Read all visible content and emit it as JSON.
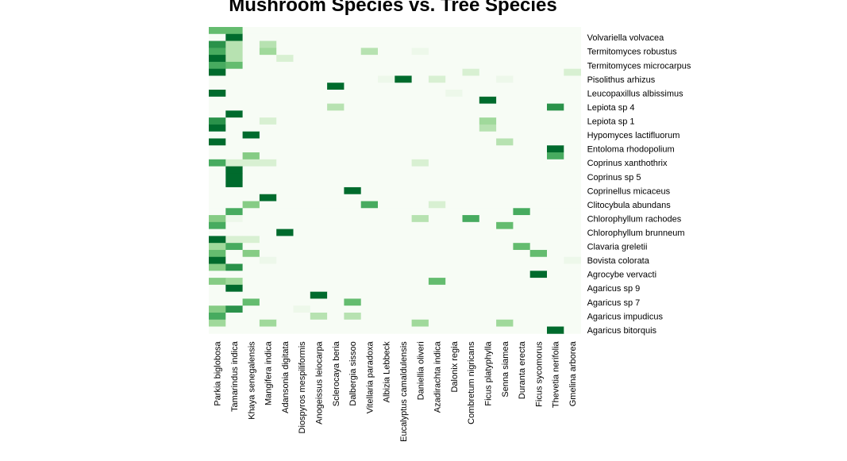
{
  "chart_data": {
    "type": "heatmap",
    "title": "Mushroom Species vs. Tree Species",
    "columns": [
      "Parkia biglobosa",
      "Tamarindus indica",
      "Khaya senegalensis",
      "Mangifera indica",
      "Adansonia digitata",
      "Diospyros mespiliformis",
      "Anogeissus leiocarpa",
      "Sclerocaya  beria",
      "Dalbergia sissoo",
      "Vitellaria paradoxa",
      "Albizia Lebbeck",
      "Eucalyptus camaldulensis",
      "Daniellia oliveri",
      "Azadirachta indica",
      "Dalonix regia",
      "Combretum nigricans",
      "Ficus platyphylla",
      "Senna siamea",
      "Duranta erecta",
      "Ficus sycomorus",
      "Thevetia nerifolia",
      "Gmelina arborea"
    ],
    "rows": [
      "",
      "Volvariella volvacea",
      "",
      "Termitomyces robustus",
      "",
      "Termitomyces microcarpus",
      "",
      "Pisolithus arhizus",
      "",
      "Leucopaxillus albissimus",
      "",
      "Lepiota sp  4",
      "",
      "Lepiota sp  1",
      "",
      "Hypomyces lactifluorum",
      "",
      "Entoloma rhodopolium",
      "",
      "Coprinus xanthothrix",
      "",
      "Coprinus sp  5",
      "",
      "Coprinellus micaceus",
      "",
      "Clitocybula abundans",
      "",
      "Chlorophyllum rachodes",
      "",
      "Chlorophyllum brunneum",
      "",
      "Clavaria greletii",
      "",
      "Bovista colorata",
      "",
      "Agrocybe vervacti",
      "",
      "Agaricus sp  9",
      "",
      "Agaricus sp  7",
      "",
      "Agaricus impudicus",
      "",
      "Agaricus bitorquis"
    ],
    "values": [
      [
        6,
        6,
        0,
        0,
        0,
        0,
        0,
        0,
        0,
        0,
        0,
        0,
        0,
        0,
        0,
        0,
        0,
        0,
        0,
        0,
        0,
        0
      ],
      [
        0,
        9,
        0,
        0,
        0,
        0,
        0,
        0,
        0,
        0,
        0,
        0,
        0,
        0,
        0,
        0,
        0,
        0,
        0,
        0,
        0,
        0
      ],
      [
        8,
        3,
        0,
        3,
        0,
        0,
        0,
        0,
        0,
        0,
        0,
        0,
        0,
        0,
        0,
        0,
        0,
        0,
        0,
        0,
        0,
        0
      ],
      [
        7,
        3,
        0,
        4,
        0,
        0,
        0,
        0,
        0,
        3,
        0,
        0,
        1,
        0,
        0,
        0,
        0,
        0,
        0,
        0,
        0,
        0
      ],
      [
        9,
        3,
        0,
        0,
        2,
        0,
        0,
        0,
        0,
        0,
        0,
        0,
        0,
        0,
        0,
        0,
        0,
        0,
        0,
        0,
        0,
        0
      ],
      [
        7,
        6,
        0,
        0,
        0,
        0,
        0,
        0,
        0,
        0,
        0,
        0,
        0,
        0,
        0,
        0,
        0,
        0,
        0,
        0,
        0,
        0
      ],
      [
        9,
        0,
        0,
        0,
        0,
        0,
        0,
        0,
        0,
        0,
        0,
        0,
        0,
        0,
        0,
        2,
        0,
        0,
        0,
        0,
        0,
        2
      ],
      [
        0,
        0,
        0,
        0,
        0,
        0,
        0,
        0,
        0,
        0,
        1,
        9,
        0,
        2,
        0,
        0,
        0,
        1,
        0,
        0,
        0,
        0
      ],
      [
        0,
        0,
        0,
        0,
        0,
        0,
        0,
        9,
        0,
        0,
        0,
        0,
        0,
        0,
        0,
        0,
        0,
        0,
        0,
        0,
        0,
        0
      ],
      [
        9,
        0,
        0,
        0,
        0,
        0,
        0,
        0,
        0,
        0,
        0,
        0,
        0,
        0,
        1,
        0,
        0,
        0,
        0,
        0,
        0,
        0
      ],
      [
        0,
        0,
        0,
        0,
        0,
        0,
        0,
        0,
        0,
        0,
        0,
        0,
        0,
        0,
        0,
        0,
        9,
        0,
        0,
        0,
        0,
        0
      ],
      [
        0,
        0,
        0,
        0,
        0,
        0,
        0,
        3,
        0,
        0,
        0,
        0,
        0,
        0,
        0,
        0,
        0,
        0,
        0,
        0,
        8,
        0
      ],
      [
        0,
        9,
        0,
        0,
        0,
        0,
        0,
        0,
        0,
        0,
        0,
        0,
        0,
        0,
        0,
        0,
        0,
        0,
        0,
        0,
        0,
        0
      ],
      [
        8,
        0,
        0,
        2,
        0,
        0,
        0,
        0,
        0,
        0,
        0,
        0,
        0,
        0,
        0,
        0,
        4,
        0,
        0,
        0,
        0,
        0
      ],
      [
        9,
        0,
        0,
        0,
        0,
        0,
        0,
        0,
        0,
        0,
        0,
        0,
        0,
        0,
        0,
        0,
        3,
        0,
        0,
        0,
        0,
        0
      ],
      [
        0,
        0,
        9,
        0,
        0,
        0,
        0,
        0,
        0,
        0,
        0,
        0,
        0,
        0,
        0,
        0,
        0,
        0,
        0,
        0,
        0,
        0
      ],
      [
        9,
        0,
        0,
        0,
        0,
        0,
        0,
        0,
        0,
        0,
        0,
        0,
        0,
        0,
        0,
        0,
        0,
        3,
        0,
        0,
        0,
        0
      ],
      [
        0,
        0,
        0,
        0,
        0,
        0,
        0,
        0,
        0,
        0,
        0,
        0,
        0,
        0,
        0,
        0,
        0,
        0,
        0,
        0,
        9,
        0
      ],
      [
        0,
        0,
        5,
        0,
        0,
        0,
        0,
        0,
        0,
        0,
        0,
        0,
        0,
        0,
        0,
        0,
        0,
        0,
        0,
        0,
        7,
        0
      ],
      [
        7,
        2,
        2,
        2,
        0,
        0,
        0,
        0,
        0,
        0,
        0,
        0,
        2,
        0,
        0,
        0,
        0,
        0,
        0,
        0,
        0,
        0
      ],
      [
        0,
        9,
        0,
        0,
        0,
        0,
        0,
        0,
        0,
        0,
        0,
        0,
        0,
        0,
        0,
        0,
        0,
        0,
        0,
        0,
        0,
        0
      ],
      [
        0,
        9,
        0,
        0,
        0,
        0,
        0,
        0,
        0,
        0,
        0,
        0,
        0,
        0,
        0,
        0,
        0,
        0,
        0,
        0,
        0,
        0
      ],
      [
        0,
        9,
        0,
        0,
        0,
        0,
        0,
        0,
        0,
        0,
        0,
        0,
        0,
        0,
        0,
        0,
        0,
        0,
        0,
        0,
        0,
        0
      ],
      [
        0,
        0,
        0,
        0,
        0,
        0,
        0,
        0,
        9,
        0,
        0,
        0,
        0,
        0,
        0,
        0,
        0,
        0,
        0,
        0,
        0,
        0
      ],
      [
        0,
        0,
        0,
        9,
        0,
        0,
        0,
        0,
        0,
        0,
        0,
        0,
        0,
        0,
        0,
        0,
        0,
        0,
        0,
        0,
        0,
        0
      ],
      [
        0,
        0,
        5,
        0,
        0,
        0,
        0,
        0,
        0,
        7,
        0,
        0,
        0,
        2,
        0,
        0,
        0,
        0,
        0,
        0,
        0,
        0
      ],
      [
        0,
        7,
        0,
        0,
        0,
        0,
        0,
        0,
        0,
        0,
        0,
        0,
        0,
        0,
        0,
        0,
        0,
        0,
        7,
        0,
        0,
        0
      ],
      [
        5,
        1,
        0,
        0,
        0,
        0,
        0,
        0,
        0,
        0,
        0,
        0,
        3,
        0,
        0,
        7,
        0,
        0,
        0,
        0,
        0,
        0
      ],
      [
        7,
        0,
        0,
        0,
        0,
        0,
        0,
        0,
        0,
        0,
        0,
        0,
        0,
        0,
        0,
        0,
        0,
        6,
        0,
        0,
        0,
        0
      ],
      [
        0,
        0,
        0,
        0,
        9,
        0,
        0,
        0,
        0,
        0,
        0,
        0,
        0,
        0,
        0,
        0,
        0,
        0,
        0,
        0,
        0,
        0
      ],
      [
        9,
        2,
        2,
        0,
        0,
        0,
        0,
        0,
        0,
        0,
        0,
        0,
        0,
        0,
        0,
        0,
        0,
        0,
        0,
        0,
        0,
        0
      ],
      [
        4,
        7,
        0,
        0,
        0,
        0,
        0,
        0,
        0,
        0,
        0,
        0,
        0,
        0,
        0,
        0,
        0,
        0,
        6,
        0,
        0,
        0
      ],
      [
        6,
        0,
        5,
        0,
        0,
        0,
        0,
        0,
        0,
        0,
        0,
        0,
        0,
        0,
        0,
        0,
        0,
        0,
        0,
        6,
        0,
        0
      ],
      [
        9,
        0,
        0,
        1,
        0,
        0,
        0,
        0,
        0,
        0,
        0,
        0,
        0,
        0,
        0,
        0,
        0,
        0,
        0,
        0,
        0,
        1
      ],
      [
        5,
        8,
        0,
        0,
        0,
        0,
        0,
        0,
        0,
        0,
        0,
        0,
        0,
        0,
        0,
        0,
        0,
        0,
        0,
        0,
        0,
        0
      ],
      [
        0,
        0,
        0,
        0,
        0,
        0,
        0,
        0,
        0,
        0,
        0,
        0,
        0,
        0,
        0,
        0,
        0,
        0,
        0,
        9,
        0,
        0
      ],
      [
        5,
        4,
        0,
        0,
        0,
        0,
        0,
        0,
        0,
        0,
        0,
        0,
        0,
        6,
        0,
        0,
        0,
        0,
        0,
        0,
        0,
        0
      ],
      [
        0,
        9,
        0,
        0,
        0,
        0,
        0,
        0,
        0,
        0,
        0,
        0,
        0,
        0,
        0,
        0,
        0,
        0,
        0,
        0,
        0,
        0
      ],
      [
        0,
        0,
        0,
        0,
        0,
        0,
        9,
        0,
        0,
        0,
        0,
        0,
        0,
        0,
        0,
        0,
        0,
        0,
        0,
        0,
        0,
        0
      ],
      [
        0,
        0,
        6,
        0,
        0,
        0,
        0,
        0,
        6,
        0,
        0,
        0,
        0,
        0,
        0,
        0,
        0,
        0,
        0,
        0,
        0,
        0
      ],
      [
        5,
        8,
        0,
        0,
        0,
        1,
        0,
        0,
        0,
        0,
        0,
        0,
        0,
        0,
        0,
        0,
        0,
        0,
        0,
        0,
        0,
        0
      ],
      [
        7,
        0,
        0,
        0,
        0,
        0,
        3,
        0,
        3,
        0,
        0,
        0,
        0,
        0,
        0,
        0,
        0,
        0,
        0,
        0,
        0,
        0
      ],
      [
        4,
        0,
        0,
        4,
        0,
        0,
        0,
        0,
        0,
        0,
        0,
        0,
        4,
        0,
        0,
        0,
        0,
        4,
        0,
        0,
        0,
        0
      ],
      [
        0,
        0,
        0,
        0,
        0,
        0,
        0,
        0,
        0,
        0,
        0,
        0,
        0,
        0,
        0,
        0,
        0,
        0,
        0,
        0,
        9,
        0
      ]
    ],
    "value_range": [
      0,
      9
    ],
    "colormap": [
      "#f7fcf5",
      "#edf8ea",
      "#d8f0d2",
      "#b7e2b1",
      "#a0d99b",
      "#86cc85",
      "#64bc6f",
      "#47ab5f",
      "#2a924a",
      "#006b2d"
    ],
    "grid": false,
    "legend": "none"
  }
}
